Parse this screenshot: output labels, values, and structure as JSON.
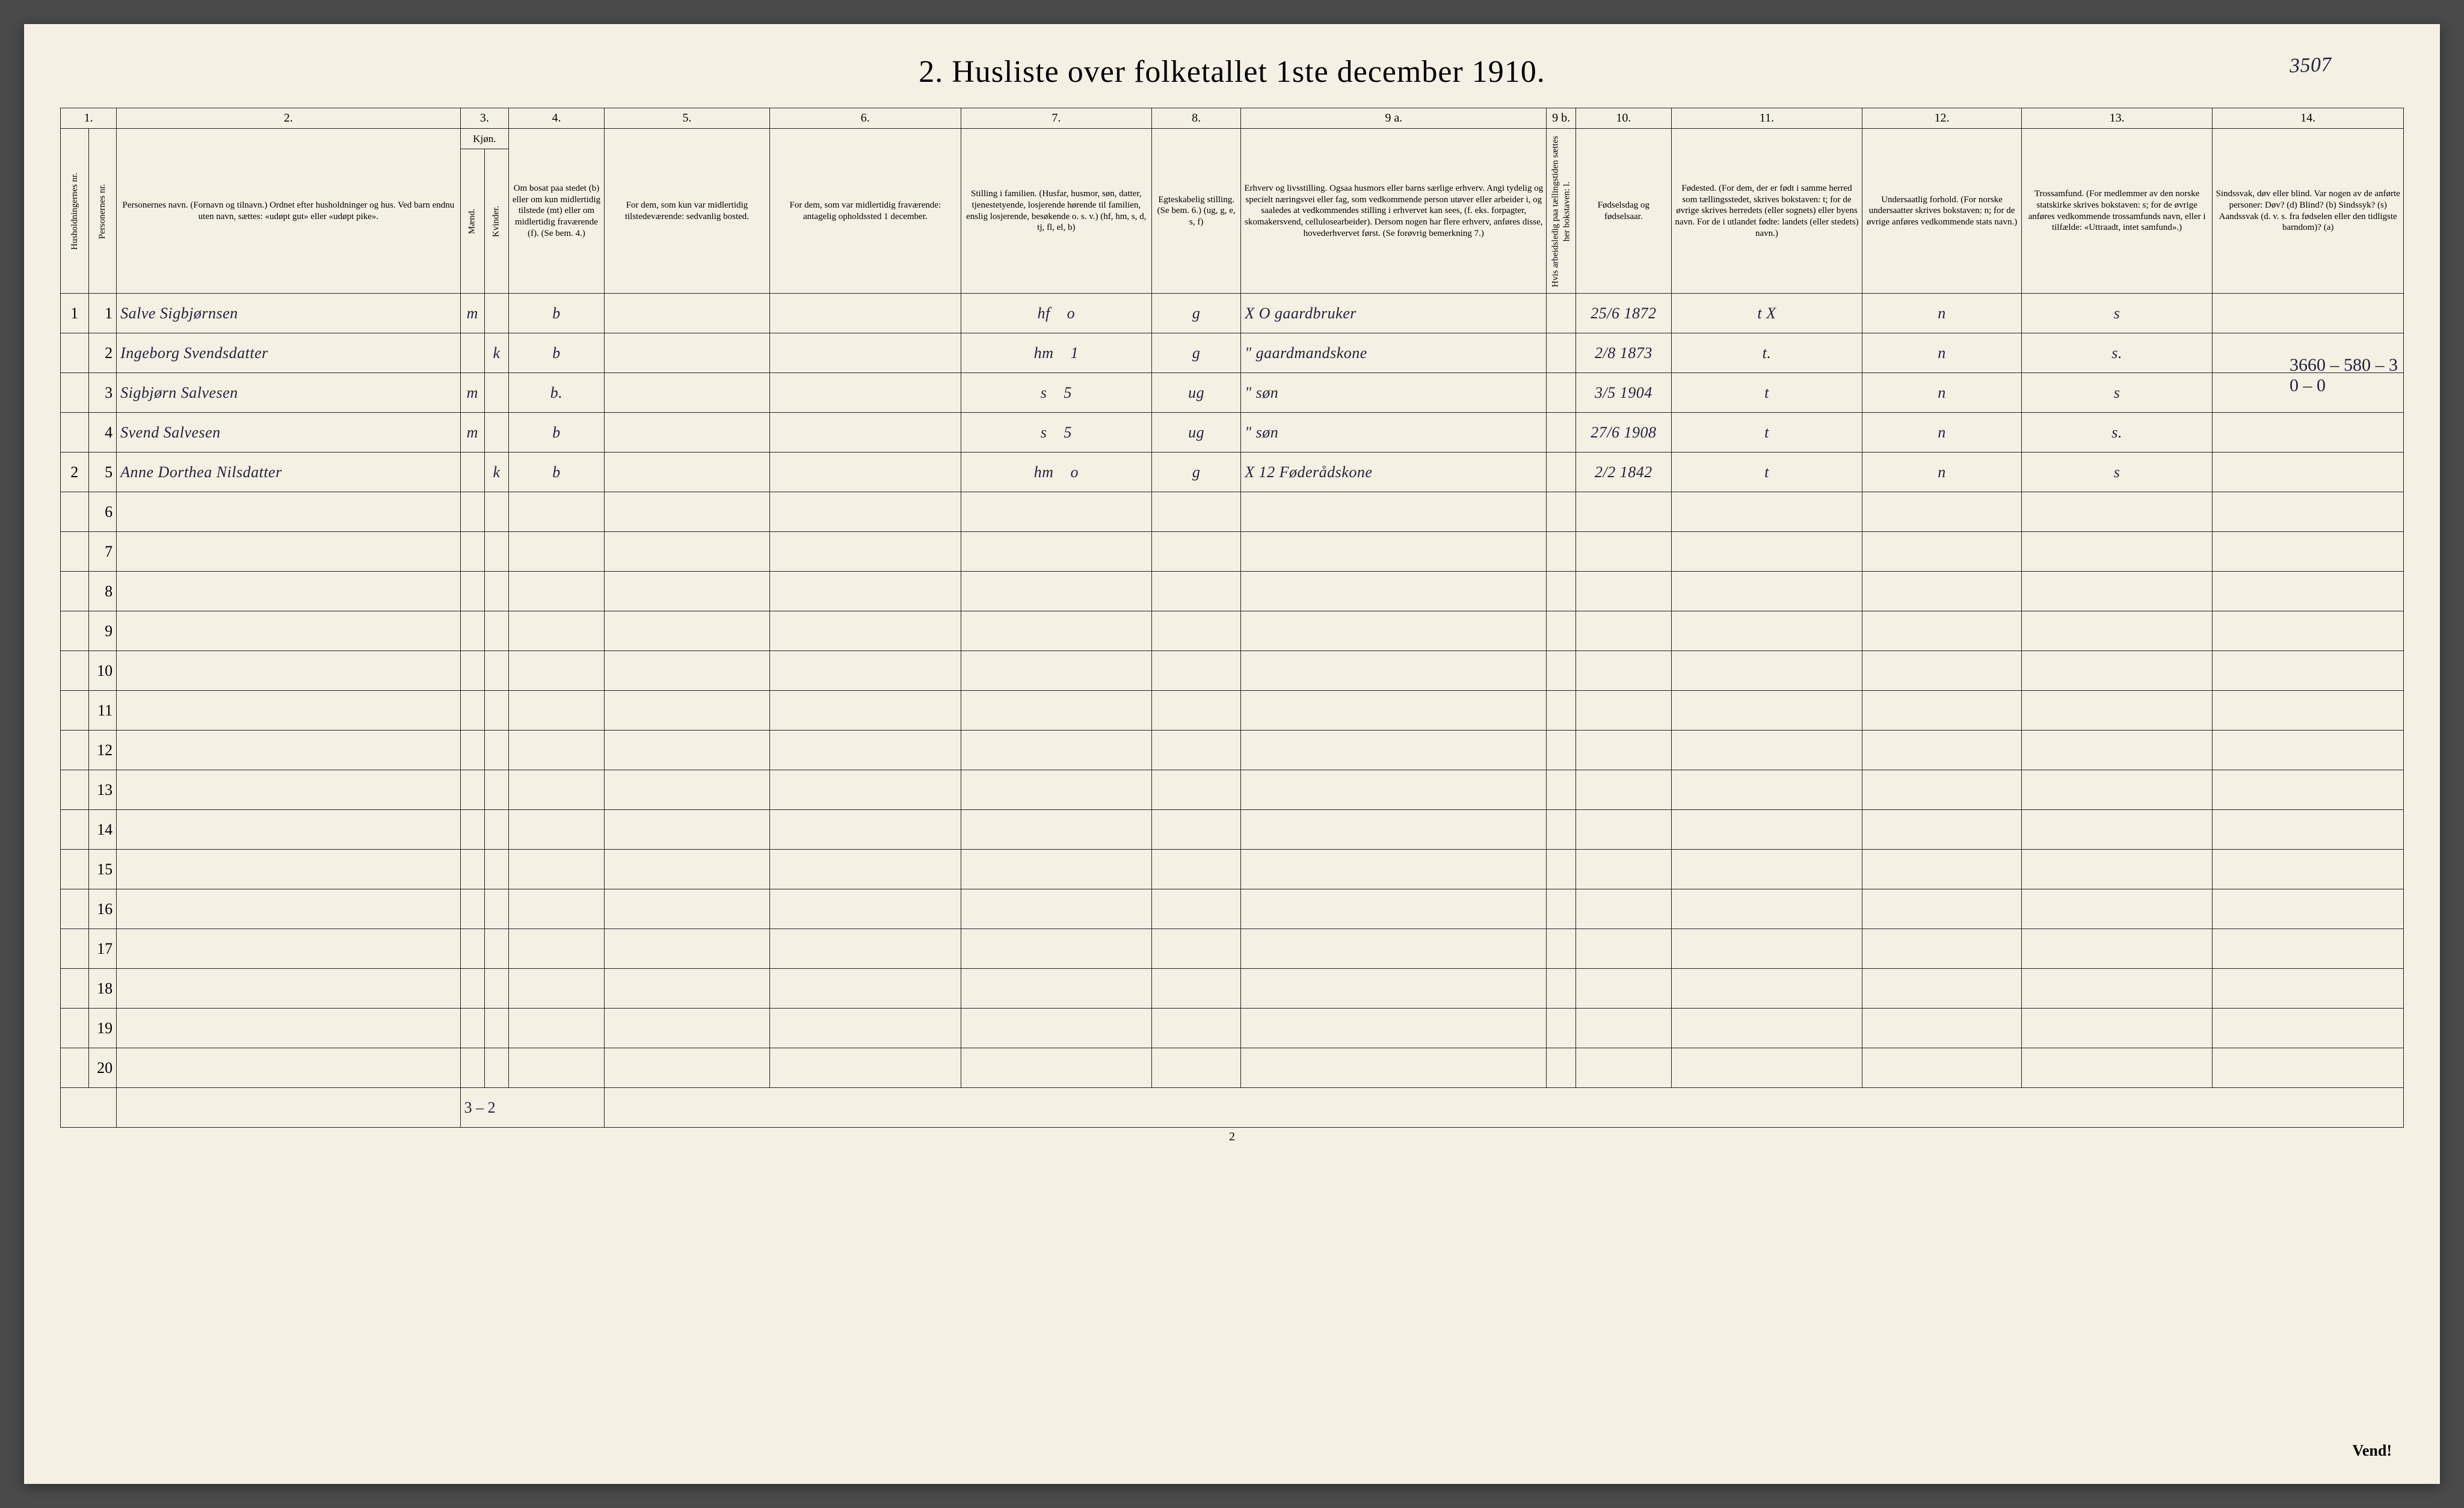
{
  "margin_note": "3507",
  "title": "2.  Husliste over folketallet 1ste december 1910.",
  "right_margin_lines": [
    "3660 – 580 – 3",
    "0 – 0"
  ],
  "colnums": [
    "1.",
    "2.",
    "3.",
    "4.",
    "5.",
    "6.",
    "7.",
    "8.",
    "9 a.",
    "9 b.",
    "10.",
    "11.",
    "12.",
    "13.",
    "14."
  ],
  "headers": {
    "hh": "Husholdningernes nr.",
    "pn": "Personernes nr.",
    "name": "Personernes navn.\n(Fornavn og tilnavn.)\nOrdnet efter husholdninger og hus.\nVed barn endnu uten navn, sættes: «udøpt gut» eller «udøpt pike».",
    "sex": "Kjøn.",
    "sex_m": "Mænd.",
    "sex_k": "Kvinder.",
    "res": "Om bosat paa stedet (b) eller om kun midlertidig tilstede (mt) eller om midlertidig fraværende (f).\n(Se bem. 4.)",
    "usual": "For dem, som kun var midlertidig tilstedeværende:\nsedvanlig bosted.",
    "temp": "For dem, som var midlertidig fraværende:\nantagelig opholdssted 1 december.",
    "fam": "Stilling i familien.\n(Husfar, husmor, søn, datter, tjenestetyende, losjerende hørende til familien, enslig losjerende, besøkende o. s. v.)\n(hf, hm, s, d, tj, fl, el, b)",
    "mar": "Egteskabelig stilling.\n(Se bem. 6.)\n(ug, g, e, s, f)",
    "occ": "Erhverv og livsstilling.\nOgsaa husmors eller barns særlige erhverv.\nAngi tydelig og specielt næringsvei eller fag, som vedkommende person utøver eller arbeider i, og saaledes at vedkommendes stilling i erhvervet kan sees, (f. eks. forpagter, skomakersvend, cellulosearbeider). Dersom nogen har flere erhverv, anføres disse, hovederhvervet først.\n(Se forøvrig bemerkning 7.)",
    "col9b": "Hvis arbeidsledig paa tællingstiden sættes her bokstaven: l.",
    "bd": "Fødselsdag og fødselsaar.",
    "bp": "Fødested.\n(For dem, der er født i samme herred som tællingsstedet, skrives bokstaven: t; for de øvrige skrives herredets (eller sognets) eller byens navn. For de i utlandet fødte: landets (eller stedets) navn.)",
    "nat": "Undersaatlig forhold.\n(For norske undersaatter skrives bokstaven: n; for de øvrige anføres vedkommende stats navn.)",
    "rel": "Trossamfund.\n(For medlemmer av den norske statskirke skrives bokstaven: s; for de øvrige anføres vedkommende trossamfunds navn, eller i tilfælde: «Uttraadt, intet samfund».)",
    "dis": "Sindssvak, døv eller blind.\nVar nogen av de anførte personer:\nDøv? (d)\nBlind? (b)\nSindssyk? (s)\nAandssvak (d. v. s. fra fødselen eller den tidligste barndom)? (a)"
  },
  "rows": [
    {
      "hh": "1",
      "pn": "1",
      "name": "Salve Sigbjørnsen",
      "sex_m": "m",
      "sex_k": "",
      "res": "b",
      "usual": "",
      "temp": "",
      "fam": "hf",
      "fam2": "o",
      "mar": "g",
      "occ": "X O  gaardbruker",
      "bd": "25/6 1872",
      "bp": "t   X",
      "nat": "n",
      "rel": "s",
      "dis": ""
    },
    {
      "hh": "",
      "pn": "2",
      "name": "Ingeborg Svendsdatter",
      "sex_m": "",
      "sex_k": "k",
      "res": "b",
      "usual": "",
      "temp": "",
      "fam": "hm",
      "fam2": "1",
      "mar": "g",
      "occ": "\"   gaardmandskone",
      "bd": "2/8 1873",
      "bp": "t.",
      "nat": "n",
      "rel": "s.",
      "dis": ""
    },
    {
      "hh": "",
      "pn": "3",
      "name": "Sigbjørn Salvesen",
      "sex_m": "m",
      "sex_k": "",
      "res": "b.",
      "usual": "",
      "temp": "",
      "fam": "s",
      "fam2": "5",
      "mar": "ug",
      "occ": "\"   søn",
      "bd": "3/5 1904",
      "bp": "t",
      "nat": "n",
      "rel": "s",
      "dis": ""
    },
    {
      "hh": "",
      "pn": "4",
      "name": "Svend Salvesen",
      "sex_m": "m",
      "sex_k": "",
      "res": "b",
      "usual": "",
      "temp": "",
      "fam": "s",
      "fam2": "5",
      "mar": "ug",
      "occ": "\"   søn",
      "bd": "27/6 1908",
      "bp": "t",
      "nat": "n",
      "rel": "s.",
      "dis": ""
    },
    {
      "hh": "2",
      "pn": "5",
      "name": "Anne Dorthea Nilsdatter",
      "sex_m": "",
      "sex_k": "k",
      "res": "b",
      "usual": "",
      "temp": "",
      "fam": "hm",
      "fam2": "o",
      "mar": "g",
      "occ": "X 12  Føderådskone",
      "bd": "2/2 1842",
      "bp": "t",
      "nat": "n",
      "rel": "s",
      "dis": ""
    }
  ],
  "empty_row_nums": [
    "6",
    "7",
    "8",
    "9",
    "10",
    "11",
    "12",
    "13",
    "14",
    "15",
    "16",
    "17",
    "18",
    "19",
    "20"
  ],
  "footer_tally": "3 – 2",
  "page_number": "2",
  "vend": "Vend!"
}
